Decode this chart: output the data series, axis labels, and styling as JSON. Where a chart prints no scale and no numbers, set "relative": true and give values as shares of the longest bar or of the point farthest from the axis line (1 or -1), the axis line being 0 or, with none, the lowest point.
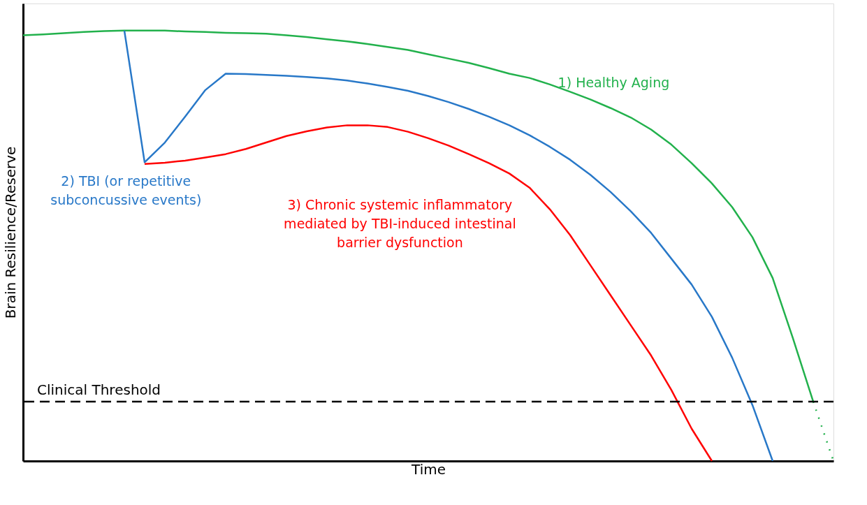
{
  "chart_data": {
    "type": "line",
    "relative": true,
    "xlabel": "Time",
    "ylabel": "Brain Resilience/Reserve",
    "grid": false,
    "legend": false,
    "tick_labels": false,
    "marker": "none",
    "categories": [
      null,
      null,
      null,
      null,
      null,
      null,
      null,
      null,
      null,
      null,
      null,
      null,
      null,
      null,
      null,
      null,
      null,
      null,
      null,
      null,
      null,
      null,
      null,
      null,
      null,
      null,
      null,
      null,
      null,
      null,
      null,
      null,
      null,
      null,
      null,
      null,
      null,
      null,
      null,
      null,
      null
    ],
    "series": [
      {
        "name": "1) Healthy Aging",
        "color": "#22b14c",
        "line_style": "solid",
        "values": [
          0.989,
          0.991,
          0.994,
          0.997,
          0.999,
          1.0,
          1.0,
          1.0,
          0.998,
          0.997,
          0.995,
          0.994,
          0.993,
          0.989,
          0.985,
          0.98,
          0.975,
          0.969,
          0.962,
          0.955,
          0.945,
          0.935,
          0.925,
          0.913,
          0.9,
          0.89,
          0.875,
          0.858,
          0.84,
          0.82,
          0.798,
          0.77,
          0.735,
          0.692,
          0.645,
          0.59,
          0.52,
          0.425,
          0.285,
          0.138,
          null
        ]
      },
      {
        "color": "#22b14c",
        "line_style": "dotted",
        "values": [
          null,
          null,
          null,
          null,
          null,
          null,
          null,
          null,
          null,
          null,
          null,
          null,
          null,
          null,
          null,
          null,
          null,
          null,
          null,
          null,
          null,
          null,
          null,
          null,
          null,
          null,
          null,
          null,
          null,
          null,
          null,
          null,
          null,
          null,
          null,
          null,
          null,
          null,
          null,
          0.138,
          0
        ]
      },
      {
        "name": "2) TBI (or repetitive\nsubconcussive events)",
        "color": "#2878c8",
        "line_style": "solid",
        "values": [
          null,
          null,
          null,
          null,
          null,
          1.0,
          0.694,
          0.74,
          0.8,
          0.862,
          0.9,
          0.899,
          0.897,
          0.895,
          0.892,
          0.889,
          0.884,
          0.877,
          0.869,
          0.86,
          0.848,
          0.834,
          0.818,
          0.8,
          0.78,
          0.757,
          0.73,
          0.7,
          0.665,
          0.625,
          0.58,
          0.53,
          0.47,
          0.41,
          0.335,
          0.24,
          0.13,
          0,
          null,
          null,
          null
        ]
      },
      {
        "name": "3) Chronic systemic inflammatory\nmediated by TBI-induced intestinal\nbarrier dysfunction",
        "color": "#ff0000",
        "line_style": "solid",
        "values": [
          null,
          null,
          null,
          null,
          null,
          null,
          0.69,
          0.693,
          0.698,
          0.705,
          0.713,
          0.725,
          0.74,
          0.755,
          0.766,
          0.775,
          0.78,
          0.78,
          0.776,
          0.765,
          0.75,
          0.733,
          0.713,
          0.692,
          0.668,
          0.635,
          0.585,
          0.525,
          0.455,
          0.385,
          0.315,
          0.245,
          0.165,
          0.075,
          0,
          null,
          null,
          null,
          null,
          null,
          null
        ]
      }
    ],
    "ref_lines": [
      {
        "axis": "y",
        "value": 0.138,
        "label": "Clinical Threshold",
        "color": "#000000",
        "line_style": "dashed"
      }
    ]
  }
}
